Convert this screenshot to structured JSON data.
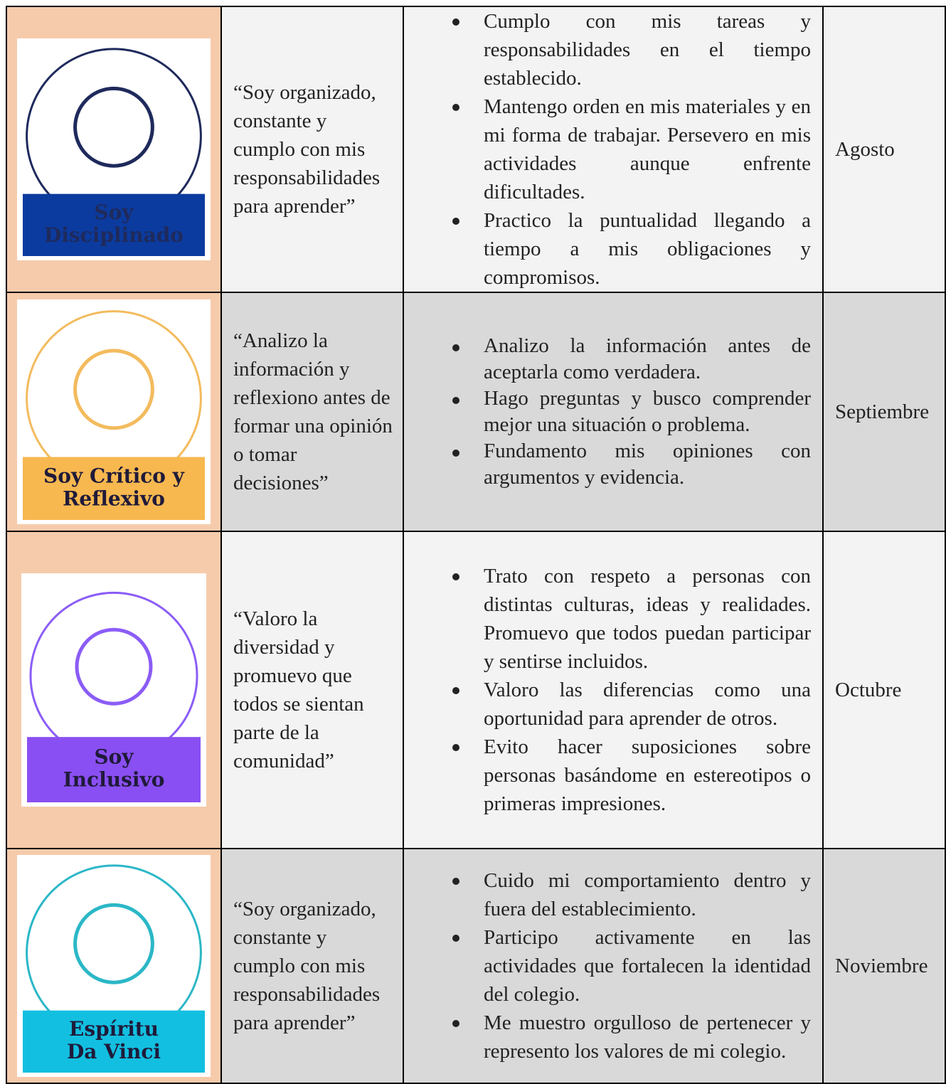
{
  "table": {
    "rows": [
      {
        "badge": [
          "Soy",
          "Disciplinado"
        ],
        "quote": "“Soy organizado, constante y cumplo con mis responsabilidades para aprender”",
        "bullets": [
          "Cumplo con mis tareas y responsabilidades en el tiempo establecido.",
          "Mantengo orden en mis materiales y en mi forma de trabajar. Persevero en mis actividades aunque enfrente dificultades.",
          "Practico la puntualidad llegando a tiempo a mis obligaciones y compromisos."
        ],
        "month": "Agosto"
      },
      {
        "badge": [
          "Soy Crítico y",
          "Reflexivo"
        ],
        "quote": "“Analizo la información y reflexiono antes de formar una opinión o tomar decisiones”",
        "bullets": [
          "Analizo la información antes de aceptarla como verdadera.",
          "Hago preguntas y busco comprender mejor una situación o problema.",
          "Fundamento mis opiniones con argumentos y evidencia."
        ],
        "month": "Septiembre"
      },
      {
        "badge": [
          "Soy",
          "Inclusivo"
        ],
        "quote": "“Valoro la diversidad y promuevo que todos se sientan parte de la comunidad”",
        "bullets": [
          "Trato con respeto a personas con distintas culturas, ideas y realidades. Promuevo que todos puedan participar y sentirse incluidos.",
          "Valoro las diferencias como una oportunidad para aprender de otros.",
          "Evito hacer suposiciones sobre personas basándome en estereotipos o primeras impresiones."
        ],
        "month": "Octubre"
      },
      {
        "badge": [
          "Espíritu",
          "Da Vinci"
        ],
        "quote": "“Soy organizado, constante y cumplo con mis responsabilidades para aprender”",
        "bullets": [
          "Cuido mi comportamiento dentro y fuera del establecimiento.",
          "Participo activamente en las actividades que fortalecen la identidad del colegio.",
          "Me muestro orgulloso de pertenecer y represento los valores de mi colegio."
        ],
        "month": "Noviembre"
      }
    ]
  }
}
